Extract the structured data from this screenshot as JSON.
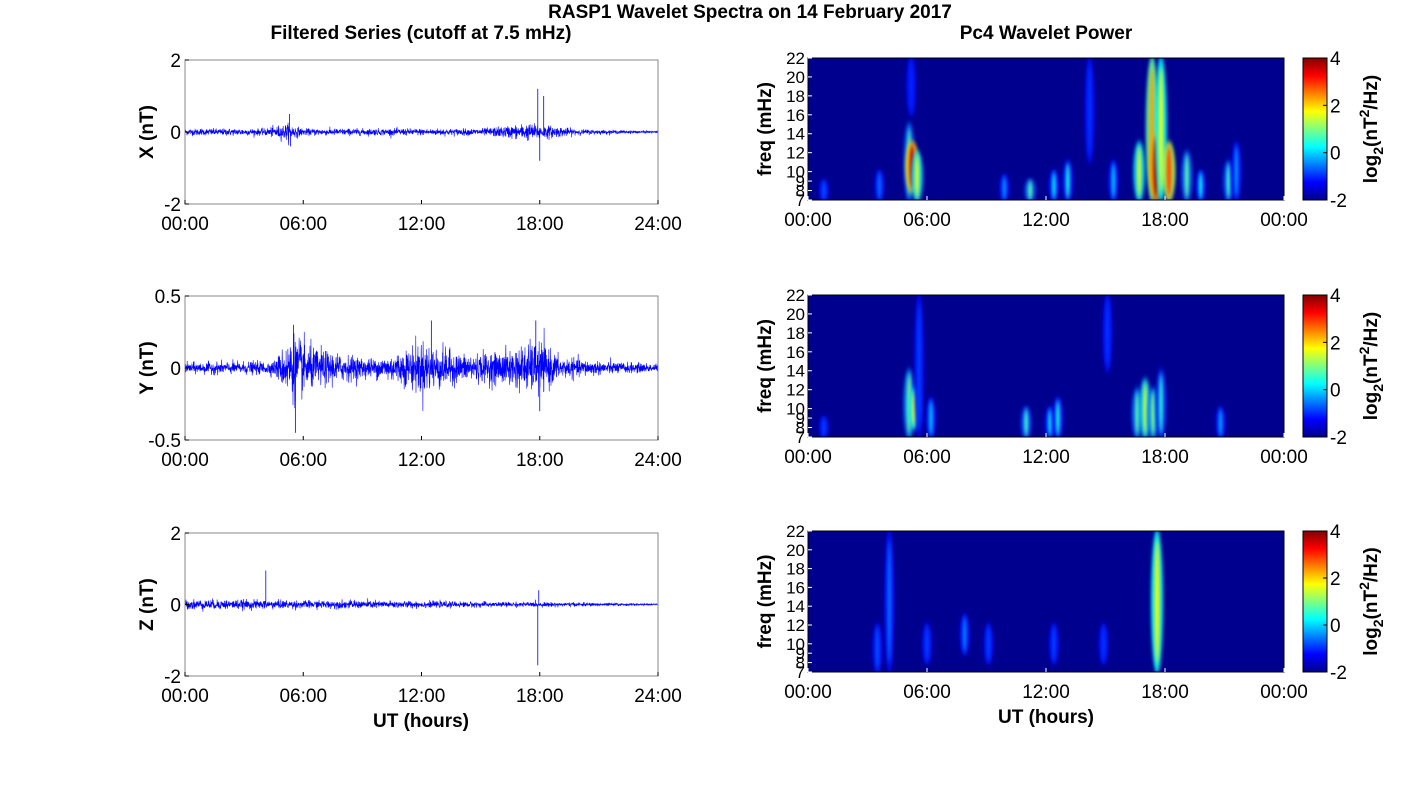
{
  "figure": {
    "title": "RASP1 Wavelet Spectra on 14 February 2017",
    "left_title": "Filtered Series (cutoff at 7.5 mHz)",
    "right_title": "Pc4 Wavelet Power",
    "xlabel": "UT (hours)"
  },
  "colors": {
    "trace": "#0000ff",
    "spec_bg": "#00008f",
    "axis": "#000000"
  },
  "chart_data": [
    {
      "type": "line",
      "panel": "X",
      "ylabel": "X (nT)",
      "xlim": [
        0,
        24
      ],
      "ylim": [
        -2,
        2
      ],
      "xticks": [
        0,
        6,
        12,
        18,
        24
      ],
      "xticklabels": [
        "00:00",
        "06:00",
        "12:00",
        "18:00",
        "24:00"
      ],
      "yticks": [
        -2,
        0,
        2
      ],
      "yticklabels": [
        "-2",
        "0",
        "2"
      ],
      "noise_envelope": {
        "x": [
          0,
          4,
          5.2,
          6,
          9,
          12,
          15,
          17.5,
          18.3,
          20,
          22,
          24
        ],
        "amplitude": [
          0.1,
          0.1,
          0.25,
          0.1,
          0.1,
          0.1,
          0.1,
          0.25,
          0.2,
          0.08,
          0.05,
          0.03
        ]
      },
      "spikes": [
        {
          "x": 5.3,
          "y": 0.5
        },
        {
          "x": 5.35,
          "y": -0.4
        },
        {
          "x": 17.9,
          "y": 1.2
        },
        {
          "x": 18.0,
          "y": -0.8
        },
        {
          "x": 18.2,
          "y": 1.0
        }
      ]
    },
    {
      "type": "line",
      "panel": "Y",
      "ylabel": "Y (nT)",
      "xlim": [
        0,
        24
      ],
      "ylim": [
        -0.5,
        0.5
      ],
      "xticks": [
        0,
        6,
        12,
        18,
        24
      ],
      "xticklabels": [
        "00:00",
        "06:00",
        "12:00",
        "18:00",
        "24:00"
      ],
      "yticks": [
        -0.5,
        0,
        0.5
      ],
      "yticklabels": [
        "-0.5",
        "0",
        "0.5"
      ],
      "noise_envelope": {
        "x": [
          0,
          4.5,
          5.5,
          6.5,
          8,
          9.5,
          11,
          12,
          14,
          16,
          18,
          19,
          21,
          24
        ],
        "amplitude": [
          0.04,
          0.05,
          0.25,
          0.15,
          0.1,
          0.07,
          0.12,
          0.2,
          0.1,
          0.12,
          0.2,
          0.08,
          0.05,
          0.03
        ]
      },
      "spikes": [
        {
          "x": 5.6,
          "y": -0.45
        },
        {
          "x": 5.5,
          "y": 0.3
        },
        {
          "x": 12.5,
          "y": 0.33
        },
        {
          "x": 17.8,
          "y": 0.33
        },
        {
          "x": 18.0,
          "y": -0.3
        }
      ]
    },
    {
      "type": "line",
      "panel": "Z",
      "ylabel": "Z (nT)",
      "xlim": [
        0,
        24
      ],
      "ylim": [
        -2,
        2
      ],
      "xticks": [
        0,
        6,
        12,
        18,
        24
      ],
      "xticklabels": [
        "00:00",
        "06:00",
        "12:00",
        "18:00",
        "24:00"
      ],
      "yticks": [
        -2,
        0,
        2
      ],
      "yticklabels": [
        "-2",
        "0",
        "2"
      ],
      "noise_envelope": {
        "x": [
          0,
          3,
          6,
          9,
          12,
          15,
          18,
          21,
          24
        ],
        "amplitude": [
          0.15,
          0.14,
          0.12,
          0.12,
          0.1,
          0.08,
          0.07,
          0.05,
          0.02
        ]
      },
      "spikes": [
        {
          "x": 4.1,
          "y": 0.95
        },
        {
          "x": 17.9,
          "y": -1.7
        },
        {
          "x": 17.95,
          "y": 0.4
        }
      ]
    },
    {
      "type": "heatmap",
      "panel": "X",
      "ylabel": "freq (mHz)",
      "xlim": [
        0,
        24
      ],
      "ylim": [
        7,
        22
      ],
      "xticks": [
        0,
        6,
        12,
        18,
        24
      ],
      "xticklabels": [
        "00:00",
        "06:00",
        "12:00",
        "18:00",
        "00:00"
      ],
      "yticks": [
        8,
        9,
        10,
        12,
        14,
        16,
        18,
        20,
        22
      ],
      "yticklabels": [
        "8",
        "9",
        "10",
        "12",
        "14",
        "16",
        "18",
        "20",
        "22"
      ],
      "extra_tick": {
        "value": 7,
        "label": "7"
      },
      "colorbar": {
        "label": "log2(nT^2/Hz)",
        "range": [
          -2,
          4
        ],
        "ticks": [
          -2,
          0,
          2,
          4
        ],
        "ticklabels": [
          "-2",
          "0",
          "2",
          "4"
        ]
      },
      "blobs": [
        {
          "t": 0.8,
          "f0": 7,
          "f1": 9,
          "level": -0.7
        },
        {
          "t": 3.6,
          "f0": 7,
          "f1": 10,
          "level": -0.5
        },
        {
          "t": 5.1,
          "f0": 7,
          "f1": 15,
          "level": 0.8
        },
        {
          "t": 5.25,
          "f0": 8,
          "f1": 13,
          "level": 3.6
        },
        {
          "t": 5.5,
          "f0": 7,
          "f1": 12,
          "level": 1.5
        },
        {
          "t": 5.2,
          "f0": 16,
          "f1": 22,
          "level": -1.0
        },
        {
          "t": 9.9,
          "f0": 7,
          "f1": 9.5,
          "level": -0.3
        },
        {
          "t": 11.2,
          "f0": 7,
          "f1": 9,
          "level": 0.8
        },
        {
          "t": 12.4,
          "f0": 7,
          "f1": 10,
          "level": 0.2
        },
        {
          "t": 13.1,
          "f0": 7,
          "f1": 11,
          "level": 0.4
        },
        {
          "t": 14.2,
          "f0": 11,
          "f1": 22,
          "level": -0.9
        },
        {
          "t": 15.4,
          "f0": 7,
          "f1": 11,
          "level": 0.0
        },
        {
          "t": 16.7,
          "f0": 7,
          "f1": 13,
          "level": 1.5
        },
        {
          "t": 17.35,
          "f0": 7,
          "f1": 22,
          "level": 2.3
        },
        {
          "t": 17.55,
          "f0": 7,
          "f1": 14,
          "level": 3.8
        },
        {
          "t": 17.8,
          "f0": 7,
          "f1": 22,
          "level": 1.7
        },
        {
          "t": 18.2,
          "f0": 7,
          "f1": 13,
          "level": 2.8
        },
        {
          "t": 19.1,
          "f0": 7,
          "f1": 12,
          "level": 0.8
        },
        {
          "t": 19.8,
          "f0": 7,
          "f1": 10,
          "level": 0.3
        },
        {
          "t": 21.2,
          "f0": 7,
          "f1": 11,
          "level": 0.6
        },
        {
          "t": 21.6,
          "f0": 7,
          "f1": 13,
          "level": -0.3
        }
      ]
    },
    {
      "type": "heatmap",
      "panel": "Y",
      "ylabel": "freq (mHz)",
      "xlim": [
        0,
        24
      ],
      "ylim": [
        7,
        22
      ],
      "xticks": [
        0,
        6,
        12,
        18,
        24
      ],
      "xticklabels": [
        "00:00",
        "06:00",
        "12:00",
        "18:00",
        "00:00"
      ],
      "yticks": [
        8,
        9,
        10,
        12,
        14,
        16,
        18,
        20,
        22
      ],
      "yticklabels": [
        "8",
        "9",
        "10",
        "12",
        "14",
        "16",
        "18",
        "20",
        "22"
      ],
      "extra_tick": {
        "value": 7,
        "label": "7"
      },
      "colorbar": {
        "label": "log2(nT^2/Hz)",
        "range": [
          -2,
          4
        ],
        "ticks": [
          -2,
          0,
          2,
          4
        ],
        "ticklabels": [
          "-2",
          "0",
          "2",
          "4"
        ]
      },
      "blobs": [
        {
          "t": 0.8,
          "f0": 7,
          "f1": 9,
          "level": -0.8
        },
        {
          "t": 5.1,
          "f0": 7,
          "f1": 14,
          "level": 1.0
        },
        {
          "t": 5.35,
          "f0": 8,
          "f1": 12,
          "level": 1.6
        },
        {
          "t": 5.6,
          "f0": 7,
          "f1": 22,
          "level": -0.8
        },
        {
          "t": 6.2,
          "f0": 7,
          "f1": 11,
          "level": 0.0
        },
        {
          "t": 11.0,
          "f0": 7,
          "f1": 10,
          "level": 0.6
        },
        {
          "t": 12.2,
          "f0": 7,
          "f1": 10,
          "level": 0.2
        },
        {
          "t": 12.6,
          "f0": 7,
          "f1": 11,
          "level": 0.4
        },
        {
          "t": 15.1,
          "f0": 14,
          "f1": 22,
          "level": -0.9
        },
        {
          "t": 16.6,
          "f0": 7,
          "f1": 12,
          "level": 0.8
        },
        {
          "t": 17.0,
          "f0": 7,
          "f1": 13,
          "level": 1.4
        },
        {
          "t": 17.4,
          "f0": 7,
          "f1": 12,
          "level": 1.0
        },
        {
          "t": 17.8,
          "f0": 7,
          "f1": 14,
          "level": 0.5
        },
        {
          "t": 20.8,
          "f0": 7,
          "f1": 10,
          "level": -0.2
        }
      ]
    },
    {
      "type": "heatmap",
      "panel": "Z",
      "ylabel": "freq (mHz)",
      "xlim": [
        0,
        24
      ],
      "ylim": [
        7,
        22
      ],
      "xticks": [
        0,
        6,
        12,
        18,
        24
      ],
      "xticklabels": [
        "00:00",
        "06:00",
        "12:00",
        "18:00",
        "00:00"
      ],
      "yticks": [
        8,
        9,
        10,
        12,
        14,
        16,
        18,
        20,
        22
      ],
      "yticklabels": [
        "8",
        "9",
        "10",
        "12",
        "14",
        "16",
        "18",
        "20",
        "22"
      ],
      "extra_tick": {
        "value": 7,
        "label": "7"
      },
      "colorbar": {
        "label": "log2(nT^2/Hz)",
        "range": [
          -2,
          4
        ],
        "ticks": [
          -2,
          0,
          2,
          4
        ],
        "ticklabels": [
          "-2",
          "0",
          "2",
          "4"
        ]
      },
      "blobs": [
        {
          "t": 3.5,
          "f0": 7,
          "f1": 12,
          "level": -0.7
        },
        {
          "t": 4.1,
          "f0": 7,
          "f1": 22,
          "level": -0.5
        },
        {
          "t": 6.0,
          "f0": 8,
          "f1": 12,
          "level": -0.8
        },
        {
          "t": 7.9,
          "f0": 9,
          "f1": 13,
          "level": -0.4
        },
        {
          "t": 9.1,
          "f0": 8,
          "f1": 12,
          "level": -0.8
        },
        {
          "t": 12.4,
          "f0": 8,
          "f1": 12,
          "level": -0.8
        },
        {
          "t": 14.9,
          "f0": 8,
          "f1": 12,
          "level": -0.9
        },
        {
          "t": 17.6,
          "f0": 7,
          "f1": 22,
          "level": 1.8
        }
      ]
    }
  ]
}
